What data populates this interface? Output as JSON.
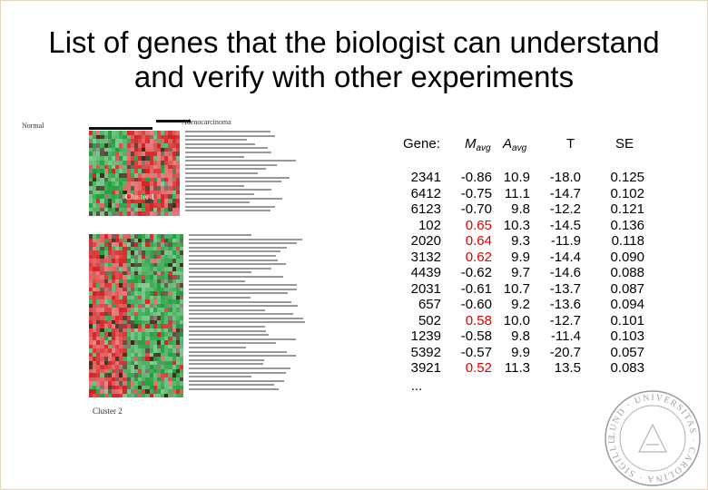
{
  "slide": {
    "title_line1": "List of genes that the biologist can understand",
    "title_line2": "and verify with other experiments"
  },
  "figure": {
    "label_normal": "Normal",
    "label_adeno": "Adenocarcinoma",
    "label_cluster1": "Cluster 1",
    "label_cluster2": "Cluster 2",
    "colors": {
      "high": "#d42020",
      "low": "#1f9e3a",
      "mid": "#3a2a1a"
    }
  },
  "table": {
    "headers": {
      "gene": "Gene:",
      "m": "M",
      "m_sub": "avg",
      "a": "A",
      "a_sub": "avg",
      "t": "T",
      "se": "SE"
    },
    "rows": [
      {
        "gene": "2341",
        "m": "-0.86",
        "a": "10.9",
        "t": "-18.0",
        "se": "0.125",
        "m_red": false
      },
      {
        "gene": "6412",
        "m": "-0.75",
        "a": "11.1",
        "t": "-14.7",
        "se": "0.102",
        "m_red": false
      },
      {
        "gene": "6123",
        "m": "-0.70",
        "a": "9.8",
        "t": "-12.2",
        "se": "0.121",
        "m_red": false
      },
      {
        "gene": "102",
        "m": "0.65",
        "a": "10.3",
        "t": "-14.5",
        "se": "0.136",
        "m_red": true
      },
      {
        "gene": "2020",
        "m": "0.64",
        "a": "9.3",
        "t": "-11.9",
        "se": "0.118",
        "m_red": true
      },
      {
        "gene": "3132",
        "m": "0.62",
        "a": "9.9",
        "t": "-14.4",
        "se": "0.090",
        "m_red": true
      },
      {
        "gene": "4439",
        "m": "-0.62",
        "a": "9.7",
        "t": "-14.6",
        "se": "0.088",
        "m_red": false
      },
      {
        "gene": "2031",
        "m": "-0.61",
        "a": "10.7",
        "t": "-13.7",
        "se": "0.087",
        "m_red": false
      },
      {
        "gene": "657",
        "m": "-0.60",
        "a": "9.2",
        "t": "-13.6",
        "se": "0.094",
        "m_red": false
      },
      {
        "gene": "502",
        "m": "0.58",
        "a": "10.0",
        "t": "-12.7",
        "se": "0.101",
        "m_red": true
      },
      {
        "gene": "1239",
        "m": "-0.58",
        "a": "9.8",
        "t": "-11.4",
        "se": "0.103",
        "m_red": false
      },
      {
        "gene": "5392",
        "m": "-0.57",
        "a": "9.9",
        "t": "-20.7",
        "se": "0.057",
        "m_red": false
      },
      {
        "gene": "3921",
        "m": "0.52",
        "a": "11.3",
        "t": "13.5",
        "se": "0.083",
        "m_red": true
      }
    ],
    "ellipsis": "..."
  },
  "seal": {
    "text": "LUND · UNIVERSITAS · CAROLINA · SIGILLUM"
  }
}
